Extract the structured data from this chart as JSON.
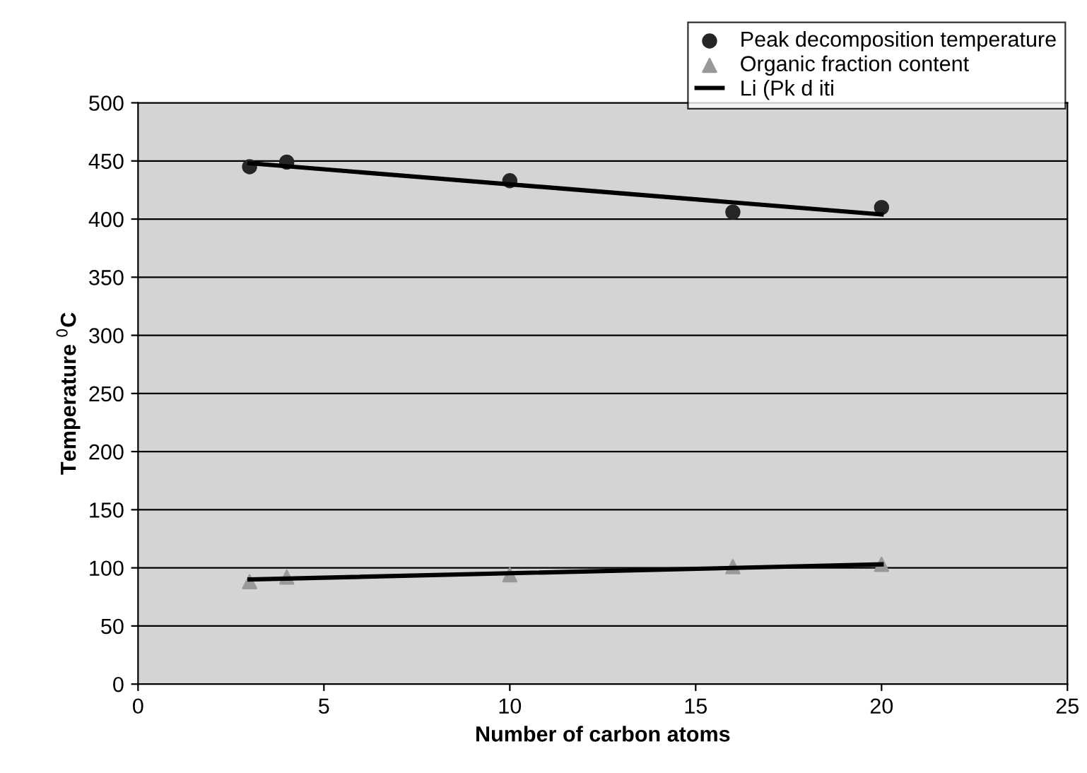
{
  "chart_data": {
    "type": "scatter",
    "xlabel": "Number of carbon atoms",
    "ylabel": "Temperature $^{0}$C",
    "series": [
      {
        "name": "Peak decomposition temperature",
        "color": "#262626",
        "marker": "circle",
        "x": [
          3,
          4,
          10,
          16,
          20
        ],
        "values": [
          445,
          449,
          433,
          406,
          410
        ]
      },
      {
        "name": "Organic fraction content",
        "color": "#999999",
        "marker": "triangle",
        "x": [
          3,
          4,
          10,
          16,
          20
        ],
        "values": [
          88,
          92,
          94,
          101,
          103
        ]
      },
      {
        "name": "Li (Pk d iti",
        "type": "line",
        "color": "#000000",
        "marker": "none",
        "x": [
          3,
          20
        ],
        "values": [
          448,
          404
        ]
      },
      {
        "type": "line",
        "color": "#000000",
        "marker": "none",
        "x": [
          3,
          20
        ],
        "values": [
          90,
          103
        ]
      }
    ],
    "xlim": [
      0,
      25
    ],
    "xticks": [
      0,
      5,
      10,
      15,
      20,
      25
    ],
    "ylim": [
      0,
      500
    ],
    "yticks": [
      0,
      50,
      100,
      150,
      200,
      250,
      300,
      350,
      400,
      450,
      500
    ],
    "grid": "y",
    "legend": "top right"
  }
}
